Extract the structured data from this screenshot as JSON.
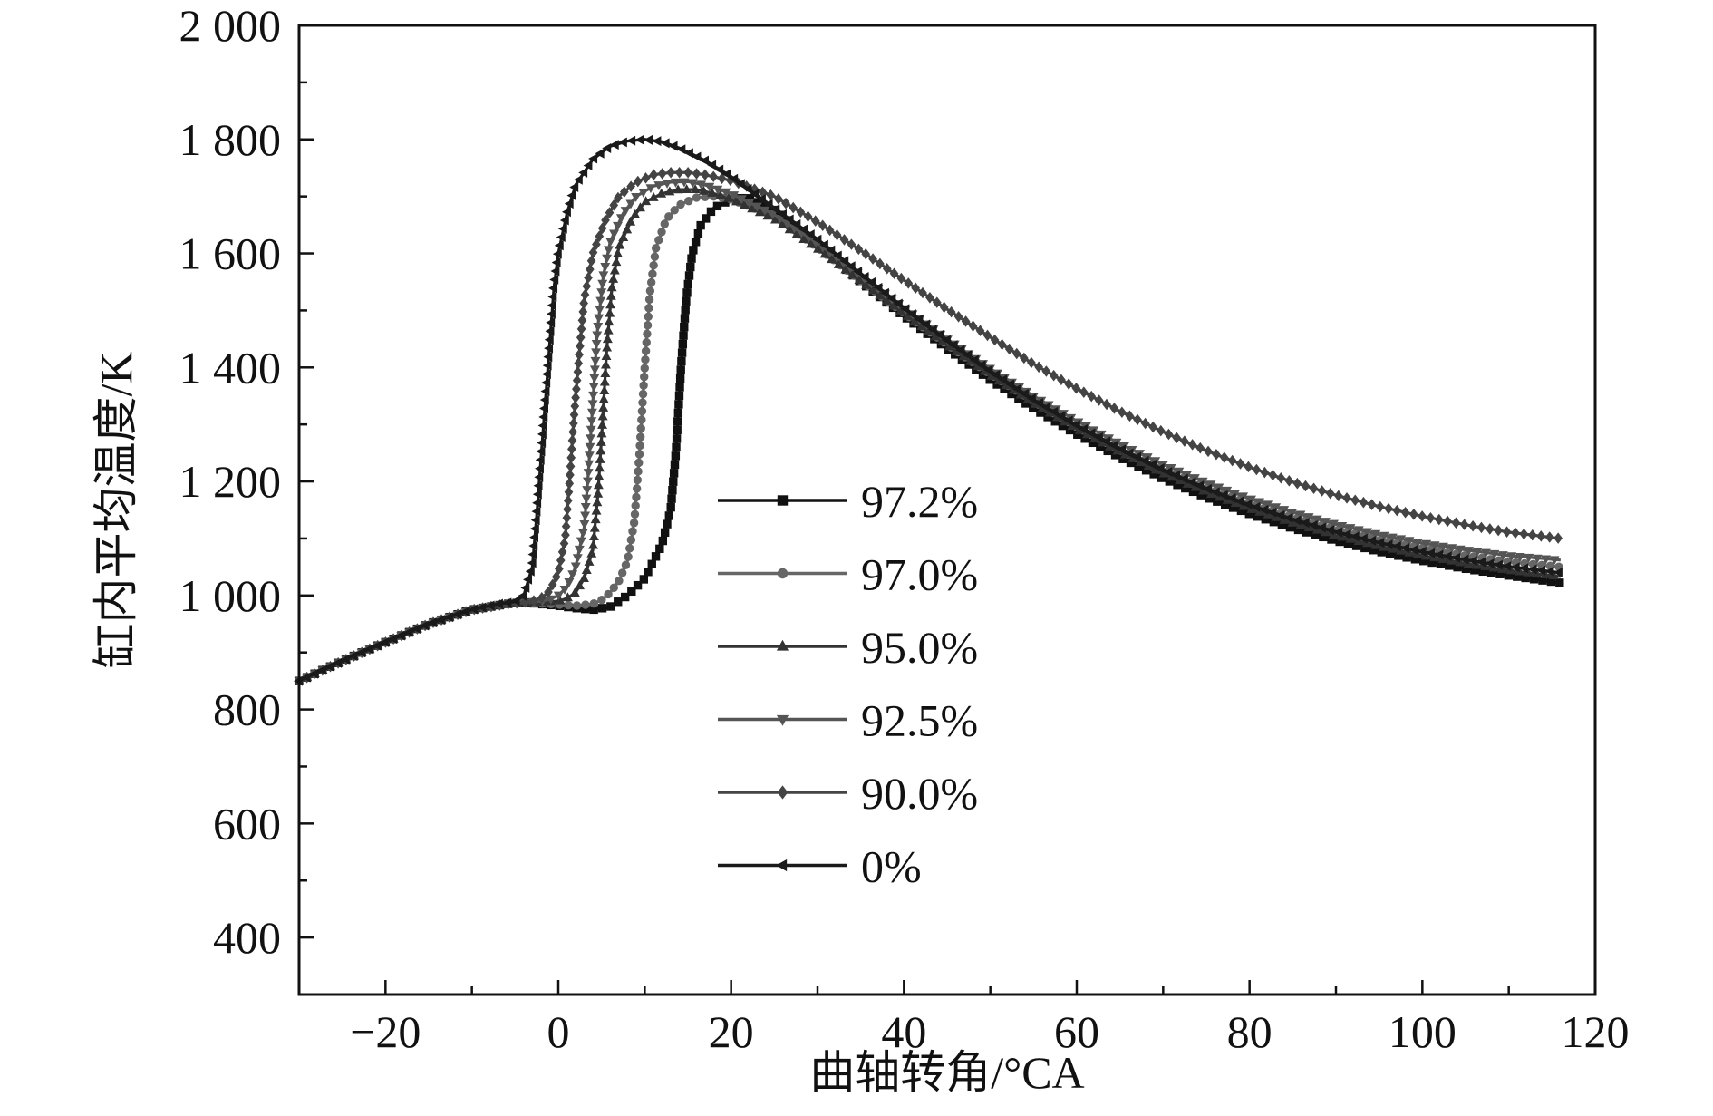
{
  "chart_data": {
    "type": "line",
    "title": "",
    "xlabel": "曲轴转角/°CA",
    "ylabel": "缸内平均温度/K",
    "xlim": [
      -30,
      120
    ],
    "ylim": [
      300,
      2000
    ],
    "xticks": [
      -20,
      0,
      20,
      40,
      60,
      80,
      100,
      120
    ],
    "xtick_labels": [
      "−20",
      "0",
      "20",
      "40",
      "60",
      "80",
      "100",
      "120"
    ],
    "yticks": [
      400,
      600,
      800,
      1000,
      1200,
      1400,
      1600,
      1800,
      2000
    ],
    "ytick_labels": [
      "400",
      "600",
      "800",
      "1 000",
      "1 200",
      "1 400",
      "1 600",
      "1 800",
      "2 000"
    ],
    "grid": false,
    "legend_position": "center",
    "series": [
      {
        "name": "97.2%",
        "color": "#111111",
        "marker": "square",
        "points": [
          [
            -30,
            850
          ],
          [
            -25,
            885
          ],
          [
            -20,
            918
          ],
          [
            -15,
            950
          ],
          [
            -10,
            975
          ],
          [
            -6,
            985
          ],
          [
            -4,
            988
          ],
          [
            -2,
            985
          ],
          [
            0,
            982
          ],
          [
            2,
            978
          ],
          [
            4,
            975
          ],
          [
            6,
            980
          ],
          [
            8,
            1000
          ],
          [
            10,
            1030
          ],
          [
            11,
            1060
          ],
          [
            12,
            1090
          ],
          [
            13,
            1150
          ],
          [
            13.6,
            1250
          ],
          [
            14.2,
            1400
          ],
          [
            14.8,
            1520
          ],
          [
            15.5,
            1600
          ],
          [
            16.5,
            1650
          ],
          [
            18,
            1680
          ],
          [
            20,
            1695
          ],
          [
            22,
            1698
          ],
          [
            25,
            1675
          ],
          [
            30,
            1615
          ],
          [
            35,
            1550
          ],
          [
            40,
            1490
          ],
          [
            45,
            1433
          ],
          [
            50,
            1378
          ],
          [
            55,
            1328
          ],
          [
            60,
            1283
          ],
          [
            65,
            1242
          ],
          [
            70,
            1205
          ],
          [
            75,
            1172
          ],
          [
            80,
            1143
          ],
          [
            85,
            1118
          ],
          [
            90,
            1096
          ],
          [
            95,
            1077
          ],
          [
            100,
            1061
          ],
          [
            105,
            1047
          ],
          [
            110,
            1035
          ],
          [
            116,
            1022
          ]
        ]
      },
      {
        "name": "97.0%",
        "color": "#666666",
        "marker": "circle",
        "points": [
          [
            -30,
            850
          ],
          [
            -25,
            885
          ],
          [
            -20,
            918
          ],
          [
            -15,
            950
          ],
          [
            -10,
            975
          ],
          [
            -6,
            985
          ],
          [
            -4,
            988
          ],
          [
            -2,
            986
          ],
          [
            0,
            984
          ],
          [
            2,
            982
          ],
          [
            4,
            985
          ],
          [
            5,
            992
          ],
          [
            6,
            1005
          ],
          [
            7,
            1025
          ],
          [
            8,
            1060
          ],
          [
            8.8,
            1130
          ],
          [
            9.4,
            1250
          ],
          [
            10,
            1400
          ],
          [
            10.6,
            1530
          ],
          [
            11.3,
            1610
          ],
          [
            12.5,
            1660
          ],
          [
            14,
            1685
          ],
          [
            16,
            1698
          ],
          [
            18,
            1700
          ],
          [
            20,
            1695
          ],
          [
            25,
            1665
          ],
          [
            30,
            1610
          ],
          [
            35,
            1552
          ],
          [
            40,
            1495
          ],
          [
            45,
            1440
          ],
          [
            50,
            1388
          ],
          [
            55,
            1340
          ],
          [
            60,
            1296
          ],
          [
            65,
            1257
          ],
          [
            70,
            1221
          ],
          [
            75,
            1189
          ],
          [
            80,
            1161
          ],
          [
            85,
            1137
          ],
          [
            90,
            1116
          ],
          [
            95,
            1098
          ],
          [
            100,
            1083
          ],
          [
            105,
            1070
          ],
          [
            110,
            1059
          ],
          [
            116,
            1050
          ]
        ]
      },
      {
        "name": "95.0%",
        "color": "#333333",
        "marker": "triangle-up",
        "points": [
          [
            -30,
            850
          ],
          [
            -25,
            885
          ],
          [
            -20,
            918
          ],
          [
            -15,
            950
          ],
          [
            -10,
            975
          ],
          [
            -6,
            985
          ],
          [
            -4,
            988
          ],
          [
            -2,
            988
          ],
          [
            0,
            990
          ],
          [
            1,
            995
          ],
          [
            2,
            1005
          ],
          [
            3,
            1030
          ],
          [
            4,
            1080
          ],
          [
            4.6,
            1180
          ],
          [
            5.1,
            1300
          ],
          [
            5.6,
            1430
          ],
          [
            6.2,
            1540
          ],
          [
            7,
            1610
          ],
          [
            8.5,
            1660
          ],
          [
            10,
            1690
          ],
          [
            12,
            1705
          ],
          [
            14,
            1712
          ],
          [
            16,
            1712
          ],
          [
            18,
            1705
          ],
          [
            20,
            1695
          ],
          [
            25,
            1660
          ],
          [
            30,
            1608
          ],
          [
            35,
            1551
          ],
          [
            40,
            1494
          ],
          [
            45,
            1439
          ],
          [
            50,
            1386
          ],
          [
            55,
            1337
          ],
          [
            60,
            1292
          ],
          [
            65,
            1251
          ],
          [
            70,
            1214
          ],
          [
            75,
            1181
          ],
          [
            80,
            1152
          ],
          [
            85,
            1127
          ],
          [
            90,
            1105
          ],
          [
            95,
            1086
          ],
          [
            100,
            1070
          ],
          [
            105,
            1056
          ],
          [
            110,
            1044
          ],
          [
            116,
            1033
          ]
        ]
      },
      {
        "name": "92.5%",
        "color": "#555555",
        "marker": "triangle-down",
        "points": [
          [
            -30,
            850
          ],
          [
            -25,
            885
          ],
          [
            -20,
            918
          ],
          [
            -15,
            950
          ],
          [
            -10,
            975
          ],
          [
            -6,
            985
          ],
          [
            -4,
            988
          ],
          [
            -2,
            990
          ],
          [
            -1,
            993
          ],
          [
            0,
            1000
          ],
          [
            1,
            1015
          ],
          [
            2,
            1050
          ],
          [
            3,
            1120
          ],
          [
            3.5,
            1220
          ],
          [
            4,
            1340
          ],
          [
            4.5,
            1460
          ],
          [
            5.2,
            1560
          ],
          [
            6,
            1620
          ],
          [
            7.5,
            1670
          ],
          [
            9,
            1700
          ],
          [
            11,
            1718
          ],
          [
            13,
            1725
          ],
          [
            15,
            1726
          ],
          [
            17,
            1720
          ],
          [
            20,
            1705
          ],
          [
            25,
            1668
          ],
          [
            30,
            1618
          ],
          [
            35,
            1562
          ],
          [
            40,
            1505
          ],
          [
            45,
            1450
          ],
          [
            50,
            1398
          ],
          [
            55,
            1350
          ],
          [
            60,
            1306
          ],
          [
            65,
            1266
          ],
          [
            70,
            1230
          ],
          [
            75,
            1198
          ],
          [
            80,
            1170
          ],
          [
            85,
            1146
          ],
          [
            90,
            1125
          ],
          [
            95,
            1107
          ],
          [
            100,
            1092
          ],
          [
            105,
            1080
          ],
          [
            110,
            1070
          ],
          [
            116,
            1062
          ]
        ]
      },
      {
        "name": "90.0%",
        "color": "#444444",
        "marker": "diamond",
        "points": [
          [
            -30,
            850
          ],
          [
            -25,
            885
          ],
          [
            -20,
            918
          ],
          [
            -15,
            950
          ],
          [
            -10,
            975
          ],
          [
            -6,
            985
          ],
          [
            -4,
            988
          ],
          [
            -3,
            990
          ],
          [
            -2,
            995
          ],
          [
            -1,
            1008
          ],
          [
            0,
            1040
          ],
          [
            0.8,
            1100
          ],
          [
            1.3,
            1200
          ],
          [
            1.8,
            1310
          ],
          [
            2.4,
            1420
          ],
          [
            3,
            1520
          ],
          [
            4,
            1600
          ],
          [
            5.5,
            1660
          ],
          [
            7,
            1700
          ],
          [
            9,
            1725
          ],
          [
            11,
            1738
          ],
          [
            13,
            1742
          ],
          [
            15,
            1742
          ],
          [
            17,
            1738
          ],
          [
            20,
            1728
          ],
          [
            25,
            1700
          ],
          [
            30,
            1655
          ],
          [
            35,
            1605
          ],
          [
            40,
            1553
          ],
          [
            45,
            1502
          ],
          [
            50,
            1453
          ],
          [
            55,
            1406
          ],
          [
            60,
            1363
          ],
          [
            65,
            1323
          ],
          [
            70,
            1287
          ],
          [
            75,
            1254
          ],
          [
            80,
            1225
          ],
          [
            85,
            1199
          ],
          [
            90,
            1176
          ],
          [
            95,
            1156
          ],
          [
            100,
            1139
          ],
          [
            105,
            1124
          ],
          [
            110,
            1111
          ],
          [
            116,
            1100
          ]
        ]
      },
      {
        "name": "0%",
        "color": "#1a1a1a",
        "marker": "triangle-left",
        "points": [
          [
            -30,
            850
          ],
          [
            -25,
            885
          ],
          [
            -20,
            918
          ],
          [
            -15,
            950
          ],
          [
            -10,
            975
          ],
          [
            -7,
            985
          ],
          [
            -5,
            989
          ],
          [
            -4,
            1000
          ],
          [
            -3,
            1050
          ],
          [
            -2.5,
            1140
          ],
          [
            -2,
            1240
          ],
          [
            -1.5,
            1340
          ],
          [
            -1,
            1440
          ],
          [
            -0.5,
            1540
          ],
          [
            0,
            1600
          ],
          [
            1,
            1670
          ],
          [
            2,
            1720
          ],
          [
            4,
            1765
          ],
          [
            6,
            1788
          ],
          [
            8,
            1797
          ],
          [
            10,
            1800
          ],
          [
            12,
            1796
          ],
          [
            14,
            1785
          ],
          [
            17,
            1763
          ],
          [
            20,
            1735
          ],
          [
            25,
            1680
          ],
          [
            30,
            1625
          ],
          [
            35,
            1565
          ],
          [
            40,
            1505
          ],
          [
            45,
            1448
          ],
          [
            50,
            1394
          ],
          [
            55,
            1344
          ],
          [
            60,
            1299
          ],
          [
            65,
            1258
          ],
          [
            70,
            1221
          ],
          [
            75,
            1188
          ],
          [
            80,
            1159
          ],
          [
            85,
            1134
          ],
          [
            90,
            1112
          ],
          [
            95,
            1093
          ],
          [
            100,
            1077
          ],
          [
            105,
            1063
          ],
          [
            110,
            1051
          ],
          [
            116,
            1040
          ]
        ]
      }
    ]
  }
}
